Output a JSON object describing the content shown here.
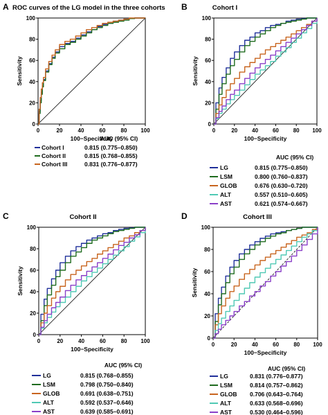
{
  "figure": {
    "panels": [
      {
        "letter": "A",
        "title": "ROC curves of the LG model in the three cohorts",
        "xlabel": "100−Specificity",
        "ylabel": "Sensitivity",
        "legend_header": "AUC (95% CI)"
      },
      {
        "letter": "B",
        "title": "Cohort I",
        "xlabel": "100−Specificity",
        "ylabel": "Sensitivity",
        "legend_header": "AUC (95% CI)"
      },
      {
        "letter": "C",
        "title": "Cohort II",
        "xlabel": "100−Specificity",
        "ylabel": "Sensitivity",
        "legend_header": "AUC (95% CI)"
      },
      {
        "letter": "D",
        "title": "Cohort III",
        "xlabel": "100−Specificity",
        "ylabel": "Sensitivity",
        "legend_header": "AUC (95% CI)"
      }
    ],
    "colors": {
      "blue": "#1f2f9a",
      "green": "#1e6b1e",
      "orange": "#c8641e",
      "cyan": "#4fc9b4",
      "purple": "#8a3fc8",
      "axis": "#000000"
    }
  },
  "chart_data": [
    {
      "type": "line",
      "title": "ROC curves of the LG model in the three cohorts",
      "xlabel": "100−Specificity",
      "ylabel": "Sensitivity",
      "xlim": [
        0,
        100
      ],
      "ylim": [
        0,
        100
      ],
      "ticks": [
        0,
        20,
        40,
        60,
        80,
        100
      ],
      "reference_line": "diagonal",
      "series": [
        {
          "name": "Cohort I",
          "auc": "0.815 (0.775–0.850)",
          "color": "#1f2f9a",
          "x": [
            0,
            1,
            2,
            3,
            4,
            5,
            7,
            10,
            13,
            16,
            20,
            25,
            30,
            35,
            40,
            45,
            50,
            55,
            60,
            65,
            70,
            75,
            80,
            85,
            90,
            100
          ],
          "y": [
            0,
            12,
            22,
            30,
            36,
            42,
            50,
            57,
            63,
            68,
            73,
            76,
            78,
            81,
            84,
            87,
            89,
            92,
            94,
            95,
            97,
            98,
            99,
            99.5,
            100,
            100
          ]
        },
        {
          "name": "Cohort II",
          "auc": "0.815 (0.768–0.855)",
          "color": "#1e6b1e",
          "x": [
            0,
            1,
            2,
            3,
            4,
            5,
            7,
            10,
            13,
            16,
            20,
            25,
            30,
            35,
            40,
            45,
            50,
            55,
            60,
            65,
            70,
            75,
            80,
            85,
            90,
            100
          ],
          "y": [
            0,
            10,
            20,
            28,
            35,
            41,
            49,
            56,
            62,
            67,
            71,
            75,
            77,
            80,
            83,
            86,
            89,
            91,
            93,
            95,
            96,
            97,
            98,
            99.5,
            100,
            100
          ]
        },
        {
          "name": "Cohort III",
          "auc": "0.831 (0.776–0.877)",
          "color": "#c8641e",
          "x": [
            0,
            1,
            2,
            3,
            4,
            5,
            7,
            10,
            13,
            16,
            20,
            25,
            30,
            35,
            40,
            45,
            50,
            55,
            60,
            65,
            70,
            75,
            80,
            85,
            90,
            100
          ],
          "y": [
            0,
            14,
            25,
            33,
            39,
            44,
            52,
            59,
            65,
            70,
            75,
            78,
            80,
            83,
            86,
            89,
            91,
            93,
            95,
            96,
            97,
            98,
            99,
            100,
            100,
            100
          ]
        }
      ]
    },
    {
      "type": "line",
      "title": "Cohort I",
      "xlabel": "100−Specificity",
      "ylabel": "Sensitivity",
      "xlim": [
        0,
        100
      ],
      "ylim": [
        0,
        100
      ],
      "ticks": [
        0,
        20,
        40,
        60,
        80,
        100
      ],
      "reference_line": "diagonal",
      "series": [
        {
          "name": "LG",
          "auc": "0.815 (0.775–0.850)",
          "color": "#1f2f9a",
          "x": [
            0,
            2,
            5,
            8,
            12,
            16,
            20,
            25,
            30,
            35,
            40,
            45,
            50,
            55,
            60,
            65,
            70,
            75,
            80,
            85,
            90,
            95,
            100
          ],
          "y": [
            0,
            20,
            34,
            44,
            53,
            62,
            68,
            74,
            79,
            82,
            86,
            88,
            91,
            93,
            94,
            95,
            97,
            98,
            99,
            99.5,
            100,
            100,
            100
          ]
        },
        {
          "name": "LSM",
          "auc": "0.800 (0.760–0.837)",
          "color": "#1e6b1e",
          "x": [
            0,
            2,
            5,
            8,
            12,
            16,
            20,
            25,
            30,
            35,
            40,
            45,
            50,
            55,
            60,
            65,
            70,
            75,
            80,
            85,
            90,
            95,
            100
          ],
          "y": [
            0,
            14,
            28,
            38,
            47,
            55,
            61,
            68,
            74,
            78,
            82,
            85,
            88,
            91,
            93,
            95,
            96,
            97,
            98,
            99,
            100,
            100,
            100
          ]
        },
        {
          "name": "GLOB",
          "auc": "0.676 (0.630–0.720)",
          "color": "#c8641e",
          "x": [
            0,
            2,
            5,
            8,
            12,
            16,
            20,
            25,
            30,
            35,
            40,
            45,
            50,
            55,
            60,
            65,
            70,
            75,
            80,
            85,
            90,
            95,
            100
          ],
          "y": [
            0,
            10,
            18,
            25,
            32,
            38,
            43,
            49,
            54,
            58,
            62,
            66,
            70,
            73,
            76,
            79,
            82,
            85,
            88,
            91,
            94,
            97,
            100
          ]
        },
        {
          "name": "ALT",
          "auc": "0.557 (0.510–0.605)",
          "color": "#4fc9b4",
          "x": [
            0,
            2,
            5,
            8,
            12,
            16,
            20,
            25,
            30,
            35,
            40,
            45,
            50,
            55,
            60,
            65,
            70,
            75,
            80,
            85,
            90,
            95,
            100
          ],
          "y": [
            0,
            5,
            10,
            14,
            19,
            23,
            27,
            32,
            37,
            42,
            47,
            51,
            55,
            59,
            64,
            68,
            72,
            77,
            81,
            86,
            90,
            95,
            100
          ]
        },
        {
          "name": "AST",
          "auc": "0.621 (0.574–0.667)",
          "color": "#8a3fc8",
          "x": [
            0,
            2,
            5,
            8,
            12,
            16,
            20,
            25,
            30,
            35,
            40,
            45,
            50,
            55,
            60,
            65,
            70,
            75,
            80,
            85,
            90,
            95,
            100
          ],
          "y": [
            0,
            6,
            12,
            17,
            23,
            28,
            32,
            38,
            43,
            48,
            53,
            57,
            61,
            65,
            69,
            73,
            77,
            81,
            85,
            89,
            93,
            97,
            100
          ]
        }
      ]
    },
    {
      "type": "line",
      "title": "Cohort II",
      "xlabel": "100−Specificity",
      "ylabel": "Sensitivity",
      "xlim": [
        0,
        100
      ],
      "ylim": [
        0,
        100
      ],
      "ticks": [
        0,
        20,
        40,
        60,
        80,
        100
      ],
      "reference_line": "diagonal",
      "series": [
        {
          "name": "LG",
          "auc": "0.815 (0.768–0.855)",
          "color": "#1f2f9a",
          "x": [
            0,
            2,
            5,
            8,
            12,
            16,
            20,
            25,
            30,
            35,
            40,
            45,
            50,
            55,
            60,
            65,
            70,
            75,
            80,
            85,
            90,
            95,
            100
          ],
          "y": [
            0,
            19,
            33,
            43,
            52,
            60,
            67,
            73,
            78,
            82,
            85,
            88,
            90,
            92,
            94,
            95,
            97,
            98,
            99,
            99.5,
            100,
            100,
            100
          ]
        },
        {
          "name": "LSM",
          "auc": "0.798 (0.750–0.840)",
          "color": "#1e6b1e",
          "x": [
            0,
            2,
            5,
            8,
            12,
            16,
            20,
            25,
            30,
            35,
            40,
            45,
            50,
            55,
            60,
            65,
            70,
            75,
            80,
            85,
            90,
            95,
            100
          ],
          "y": [
            0,
            13,
            27,
            37,
            46,
            54,
            60,
            67,
            73,
            77,
            81,
            85,
            88,
            90,
            92,
            94,
            96,
            97,
            98,
            99,
            100,
            100,
            100
          ]
        },
        {
          "name": "GLOB",
          "auc": "0.691 (0.638–0.751)",
          "color": "#c8641e",
          "x": [
            0,
            2,
            5,
            8,
            12,
            16,
            20,
            25,
            30,
            35,
            40,
            45,
            50,
            55,
            60,
            65,
            70,
            75,
            80,
            85,
            90,
            95,
            100
          ],
          "y": [
            0,
            11,
            20,
            27,
            34,
            40,
            45,
            51,
            56,
            60,
            64,
            68,
            71,
            75,
            78,
            81,
            84,
            87,
            90,
            92,
            95,
            97,
            100
          ]
        },
        {
          "name": "ALT",
          "auc": "0.592 (0.537–0.646)",
          "color": "#4fc9b4",
          "x": [
            0,
            2,
            5,
            8,
            12,
            16,
            20,
            25,
            30,
            35,
            40,
            45,
            50,
            55,
            60,
            65,
            70,
            75,
            80,
            85,
            90,
            95,
            100
          ],
          "y": [
            0,
            6,
            11,
            16,
            21,
            26,
            30,
            35,
            40,
            45,
            50,
            54,
            58,
            62,
            66,
            70,
            74,
            78,
            82,
            87,
            91,
            95,
            100
          ]
        },
        {
          "name": "AST",
          "auc": "0.639 (0.585–0.691)",
          "color": "#8a3fc8",
          "x": [
            0,
            2,
            5,
            8,
            12,
            16,
            20,
            25,
            30,
            35,
            40,
            45,
            50,
            55,
            60,
            65,
            70,
            75,
            80,
            85,
            90,
            95,
            100
          ],
          "y": [
            0,
            7,
            13,
            19,
            25,
            30,
            35,
            41,
            46,
            51,
            55,
            59,
            63,
            67,
            71,
            75,
            79,
            83,
            86,
            90,
            93,
            97,
            100
          ]
        }
      ]
    },
    {
      "type": "line",
      "title": "Cohort III",
      "xlabel": "100−Specificity",
      "ylabel": "Sensitivity",
      "xlim": [
        0,
        100
      ],
      "ylim": [
        0,
        100
      ],
      "ticks": [
        0,
        20,
        40,
        60,
        80,
        100
      ],
      "reference_line": "diagonal",
      "series": [
        {
          "name": "LG",
          "auc": "0.831 (0.776–0.877)",
          "color": "#1f2f9a",
          "x": [
            0,
            2,
            5,
            8,
            12,
            16,
            20,
            25,
            30,
            35,
            40,
            45,
            50,
            55,
            60,
            65,
            70,
            75,
            80,
            85,
            90,
            95,
            100
          ],
          "y": [
            0,
            22,
            36,
            46,
            56,
            64,
            70,
            76,
            80,
            84,
            87,
            90,
            92,
            94,
            95,
            96,
            97,
            98,
            99,
            100,
            100,
            100,
            100
          ]
        },
        {
          "name": "LSM",
          "auc": "0.814 (0.757–0.862)",
          "color": "#1e6b1e",
          "x": [
            0,
            2,
            5,
            8,
            12,
            16,
            20,
            25,
            30,
            35,
            40,
            45,
            50,
            55,
            60,
            65,
            70,
            75,
            80,
            85,
            90,
            95,
            100
          ],
          "y": [
            0,
            15,
            30,
            40,
            50,
            58,
            64,
            71,
            76,
            80,
            84,
            87,
            90,
            92,
            94,
            95,
            97,
            98,
            99,
            100,
            100,
            100,
            100
          ]
        },
        {
          "name": "GLOB",
          "auc": "0.706 (0.643–0.764)",
          "color": "#c8641e",
          "x": [
            0,
            2,
            5,
            8,
            12,
            16,
            20,
            25,
            30,
            35,
            40,
            45,
            50,
            55,
            60,
            65,
            70,
            75,
            80,
            85,
            90,
            95,
            100
          ],
          "y": [
            0,
            12,
            22,
            29,
            36,
            42,
            47,
            53,
            58,
            62,
            66,
            70,
            73,
            76,
            79,
            82,
            85,
            88,
            91,
            93,
            95,
            98,
            100
          ]
        },
        {
          "name": "ALT",
          "auc": "0.633 (0.568–0.696)",
          "color": "#4fc9b4",
          "x": [
            0,
            2,
            5,
            8,
            12,
            16,
            20,
            25,
            30,
            35,
            40,
            45,
            50,
            55,
            60,
            65,
            70,
            75,
            80,
            85,
            90,
            95,
            100
          ],
          "y": [
            0,
            7,
            13,
            18,
            24,
            29,
            34,
            40,
            45,
            50,
            55,
            59,
            63,
            67,
            71,
            75,
            79,
            83,
            87,
            91,
            94,
            97,
            100
          ]
        },
        {
          "name": "AST",
          "auc": "0.530 (0.464–0.596)",
          "color": "#8a3fc8",
          "x": [
            0,
            2,
            5,
            8,
            12,
            16,
            20,
            25,
            30,
            35,
            40,
            45,
            50,
            55,
            60,
            65,
            70,
            75,
            80,
            85,
            90,
            95,
            100
          ],
          "y": [
            0,
            4,
            8,
            12,
            16,
            20,
            24,
            29,
            33,
            38,
            42,
            47,
            51,
            56,
            60,
            65,
            69,
            74,
            79,
            84,
            89,
            94,
            100
          ]
        }
      ]
    }
  ]
}
